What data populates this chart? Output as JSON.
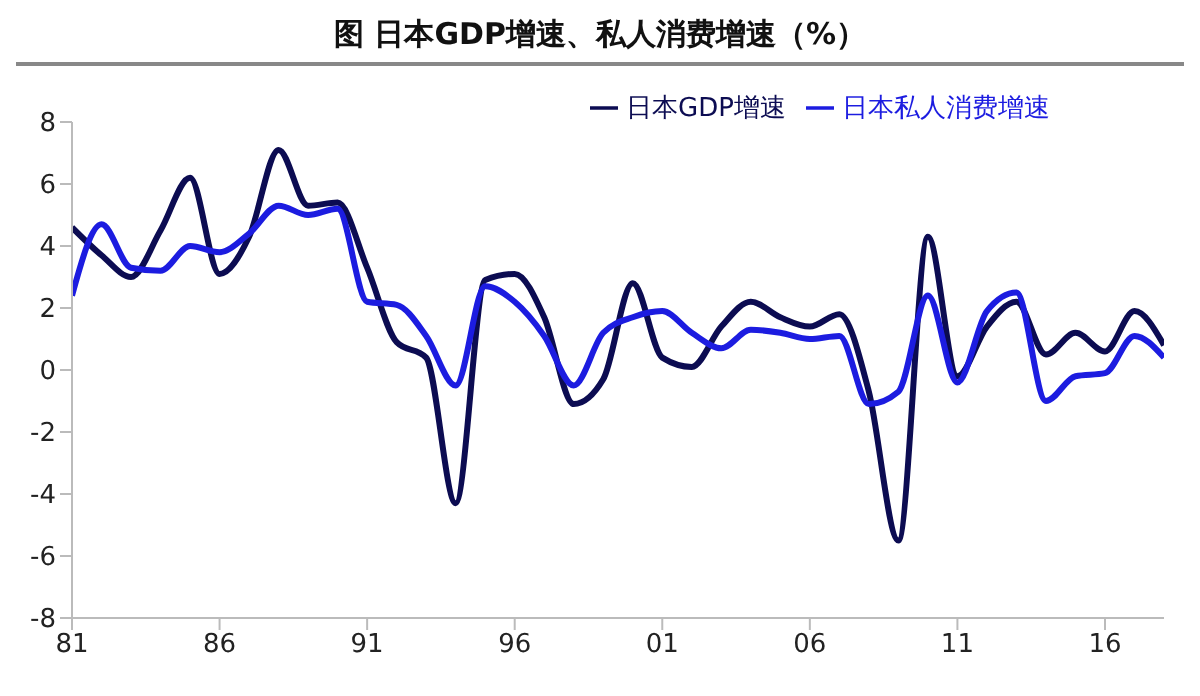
{
  "chart_data": {
    "type": "line",
    "title": "图   日本GDP增速、私人消费增速（%）",
    "x": [
      1981,
      1982,
      1983,
      1984,
      1985,
      1986,
      1987,
      1988,
      1989,
      1990,
      1991,
      1992,
      1993,
      1994,
      1995,
      1996,
      1997,
      1998,
      1999,
      2000,
      2001,
      2002,
      2003,
      2004,
      2005,
      2006,
      2007,
      2008,
      2009,
      2010,
      2011,
      2012,
      2013,
      2014,
      2015,
      2016,
      2017,
      2018
    ],
    "series": [
      {
        "name": "日本GDP增速",
        "color": "#0c0c52",
        "values": [
          4.6,
          3.7,
          3.0,
          4.5,
          6.2,
          3.1,
          4.3,
          7.1,
          5.3,
          5.4,
          3.3,
          0.9,
          0.4,
          -4.3,
          2.9,
          3.1,
          1.7,
          -1.1,
          -0.3,
          2.8,
          0.4,
          0.1,
          1.4,
          2.2,
          1.7,
          1.4,
          1.8,
          -0.7,
          -5.5,
          4.3,
          -0.2,
          1.4,
          2.2,
          0.5,
          1.2,
          0.6,
          1.9,
          0.8
        ]
      },
      {
        "name": "日本私人消费增速",
        "color": "#1c1ce0",
        "values": [
          2.4,
          4.7,
          3.3,
          3.2,
          4.0,
          3.8,
          4.4,
          5.3,
          5.0,
          5.2,
          2.2,
          2.1,
          1.1,
          -0.5,
          2.7,
          2.2,
          1.1,
          -0.5,
          1.2,
          1.7,
          1.9,
          1.2,
          0.7,
          1.3,
          1.2,
          1.0,
          1.1,
          -1.1,
          -0.7,
          2.4,
          -0.4,
          1.9,
          2.5,
          -1.0,
          -0.2,
          -0.1,
          1.1,
          0.4
        ]
      }
    ],
    "xlim": [
      1981,
      2018
    ],
    "xticks": [
      {
        "value": 1981,
        "label": "81"
      },
      {
        "value": 1986,
        "label": "86"
      },
      {
        "value": 1991,
        "label": "91"
      },
      {
        "value": 1996,
        "label": "96"
      },
      {
        "value": 2001,
        "label": "01"
      },
      {
        "value": 2006,
        "label": "06"
      },
      {
        "value": 2011,
        "label": "11"
      },
      {
        "value": 2016,
        "label": "16"
      }
    ],
    "ylim": [
      -8,
      8
    ],
    "yticks": [
      -8,
      -6,
      -4,
      -2,
      0,
      2,
      4,
      6,
      8
    ],
    "grid": false,
    "legend": "top",
    "marker": "none",
    "line_style": "solid"
  }
}
